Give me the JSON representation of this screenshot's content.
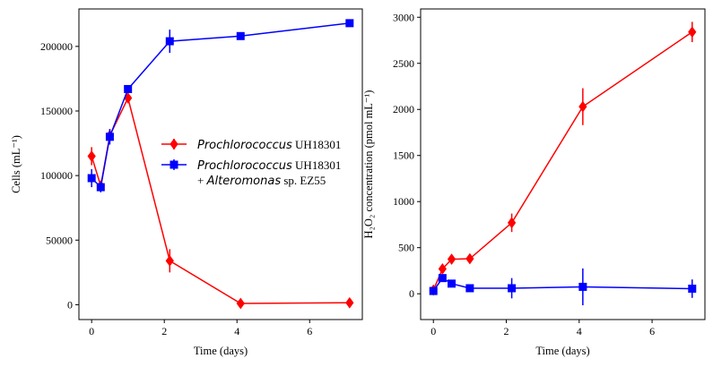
{
  "chart_data": [
    {
      "type": "line",
      "xlabel": "Time (days)",
      "ylabel": "Cells (mL⁻¹)",
      "xlim": [
        -0.35,
        7.45
      ],
      "ylim": [
        -11500,
        229000
      ],
      "xticks": [
        "0",
        "2",
        "4",
        "6"
      ],
      "yticks": [
        "0",
        "50000",
        "100000",
        "150000",
        "200000"
      ],
      "legend_position": "center-right",
      "series": [
        {
          "name": "Prochlorococcus UH18301",
          "name_parts": [
            "Prochlorococcus",
            " UH18301"
          ],
          "color": "#ff0000",
          "marker": "diamond",
          "x": [
            0,
            0.25,
            0.5,
            1,
            2.15,
            4.1,
            7.1
          ],
          "y": [
            115000,
            92000,
            131000,
            160000,
            34000,
            1000,
            1500
          ],
          "err": [
            7000,
            4000,
            5000,
            3000,
            9000,
            500,
            500
          ]
        },
        {
          "name": "Prochlorococcus UH18301 + Alteromonas sp. EZ55",
          "name_parts": [
            "Prochlorococcus",
            " UH18301"
          ],
          "name_parts_line2": [
            "+ ",
            "Alteromonas",
            " sp. EZ55"
          ],
          "color": "#0000ff",
          "marker": "square",
          "x": [
            0,
            0.25,
            0.5,
            1,
            2.15,
            4.1,
            7.1
          ],
          "y": [
            98000,
            91000,
            130000,
            167000,
            204000,
            208000,
            218000
          ],
          "err": [
            7000,
            4000,
            6000,
            3000,
            9000,
            2000,
            2000
          ]
        }
      ]
    },
    {
      "type": "line",
      "xlabel": "Time (days)",
      "ylabel": "H₂O₂ concentration (pmol mL⁻¹)",
      "xlim": [
        -0.35,
        7.45
      ],
      "ylim": [
        -280,
        3090
      ],
      "xticks": [
        "0",
        "2",
        "4",
        "6"
      ],
      "yticks": [
        "0",
        "500",
        "1000",
        "1500",
        "2000",
        "2500",
        "3000"
      ],
      "series": [
        {
          "color": "#ff0000",
          "marker": "diamond",
          "x": [
            0,
            0.25,
            0.5,
            1,
            2.15,
            4.1,
            7.1
          ],
          "y": [
            40,
            270,
            375,
            380,
            770,
            2030,
            2840
          ],
          "err": [
            15,
            30,
            30,
            30,
            100,
            200,
            110
          ]
        },
        {
          "color": "#0000ff",
          "marker": "square",
          "x": [
            0,
            0.25,
            0.5,
            1,
            2.15,
            4.1,
            7.1
          ],
          "y": [
            30,
            170,
            110,
            60,
            60,
            75,
            55
          ],
          "err": [
            15,
            30,
            20,
            10,
            110,
            200,
            100
          ]
        }
      ]
    }
  ]
}
